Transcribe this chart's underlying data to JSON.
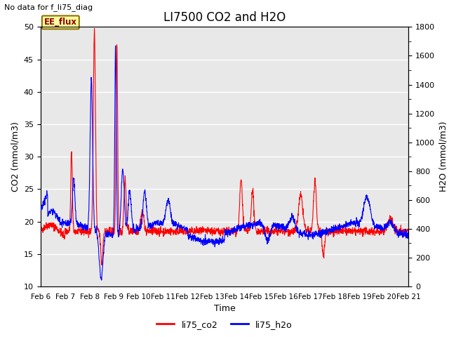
{
  "title": "LI7500 CO2 and H2O",
  "top_left_text": "No data for f_li75_diag",
  "xlabel": "Time",
  "ylabel_left": "CO2 (mmol/m3)",
  "ylabel_right": "H2O (mmol/m3)",
  "ylim_left": [
    10,
    50
  ],
  "ylim_right": [
    0,
    1800
  ],
  "yticks_left": [
    10,
    15,
    20,
    25,
    30,
    35,
    40,
    45,
    50
  ],
  "yticks_right": [
    0,
    200,
    400,
    600,
    800,
    1000,
    1200,
    1400,
    1600,
    1800
  ],
  "xtick_labels": [
    "Feb 6",
    "Feb 7",
    "Feb 8",
    "Feb 9",
    "Feb 10",
    "Feb 11",
    "Feb 12",
    "Feb 13",
    "Feb 14",
    "Feb 15",
    "Feb 16",
    "Feb 17",
    "Feb 18",
    "Feb 19",
    "Feb 20",
    "Feb 21"
  ],
  "legend_box_label": "EE_flux",
  "legend_entries": [
    "li75_co2",
    "li75_h2o"
  ],
  "line_colors": [
    "red",
    "blue"
  ],
  "background_color": "#e8e8e8",
  "grid_color": "white",
  "title_fontsize": 12,
  "label_fontsize": 9,
  "tick_fontsize": 8
}
